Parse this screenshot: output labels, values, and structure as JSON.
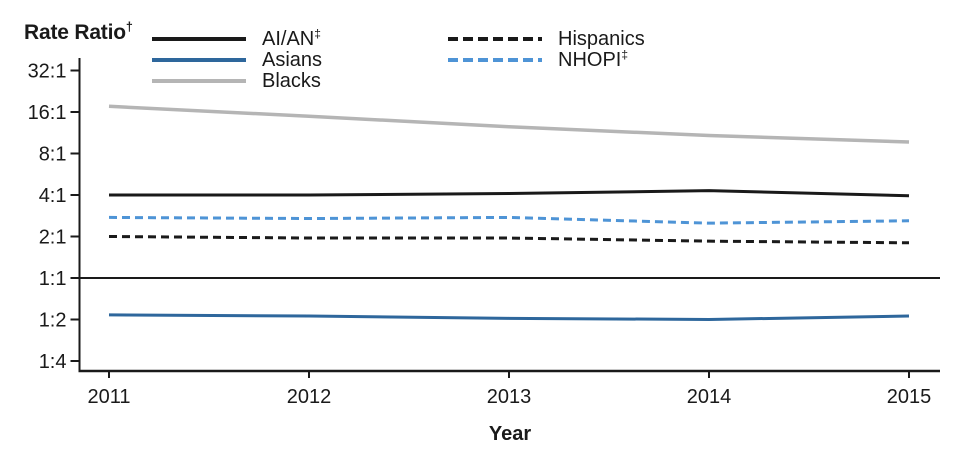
{
  "title": {
    "text": "Rate Ratio",
    "sup": "†"
  },
  "x_axis": {
    "label": "Year"
  },
  "y_axis": {
    "tick_labels": [
      "32:1",
      "16:1",
      "8:1",
      "4:1",
      "2:1",
      "1:1",
      "1:2",
      "1:4"
    ],
    "tick_values": [
      32,
      16,
      8,
      4,
      2,
      1,
      0.5,
      0.25
    ]
  },
  "colors": {
    "axis": "#1a1a1a",
    "black_line": "#1a1a1a",
    "dark_blue": "#2e679c",
    "gray": "#b5b5b5",
    "light_blue": "#4e94d6"
  },
  "chart_data": {
    "type": "line",
    "x": [
      2011,
      2012,
      2013,
      2014,
      2015
    ],
    "xlabel": "Year",
    "ylabel": "Rate Ratio",
    "yscale": "log2",
    "ylim": [
      0.25,
      32
    ],
    "grid": false,
    "legend_position": "top",
    "reference_line": {
      "value": 1,
      "label": "1:1"
    },
    "series": [
      {
        "name": "AI/AN",
        "sup": "‡",
        "color": "#1a1a1a",
        "dash": "solid",
        "values": [
          4.0,
          4.0,
          4.1,
          4.3,
          3.95
        ]
      },
      {
        "name": "Asians",
        "sup": "",
        "color": "#2e679c",
        "dash": "solid",
        "values": [
          0.54,
          0.53,
          0.51,
          0.5,
          0.53
        ]
      },
      {
        "name": "Blacks",
        "sup": "",
        "color": "#b5b5b5",
        "dash": "solid",
        "values": [
          17.6,
          14.9,
          12.5,
          10.8,
          9.7
        ]
      },
      {
        "name": "Hispanics",
        "sup": "",
        "color": "#1a1a1a",
        "dash": "dashed",
        "values": [
          2.0,
          1.95,
          1.95,
          1.85,
          1.8
        ]
      },
      {
        "name": "NHOPI",
        "sup": "‡",
        "color": "#4e94d6",
        "dash": "dashed",
        "values": [
          2.75,
          2.7,
          2.75,
          2.5,
          2.6
        ]
      }
    ]
  }
}
